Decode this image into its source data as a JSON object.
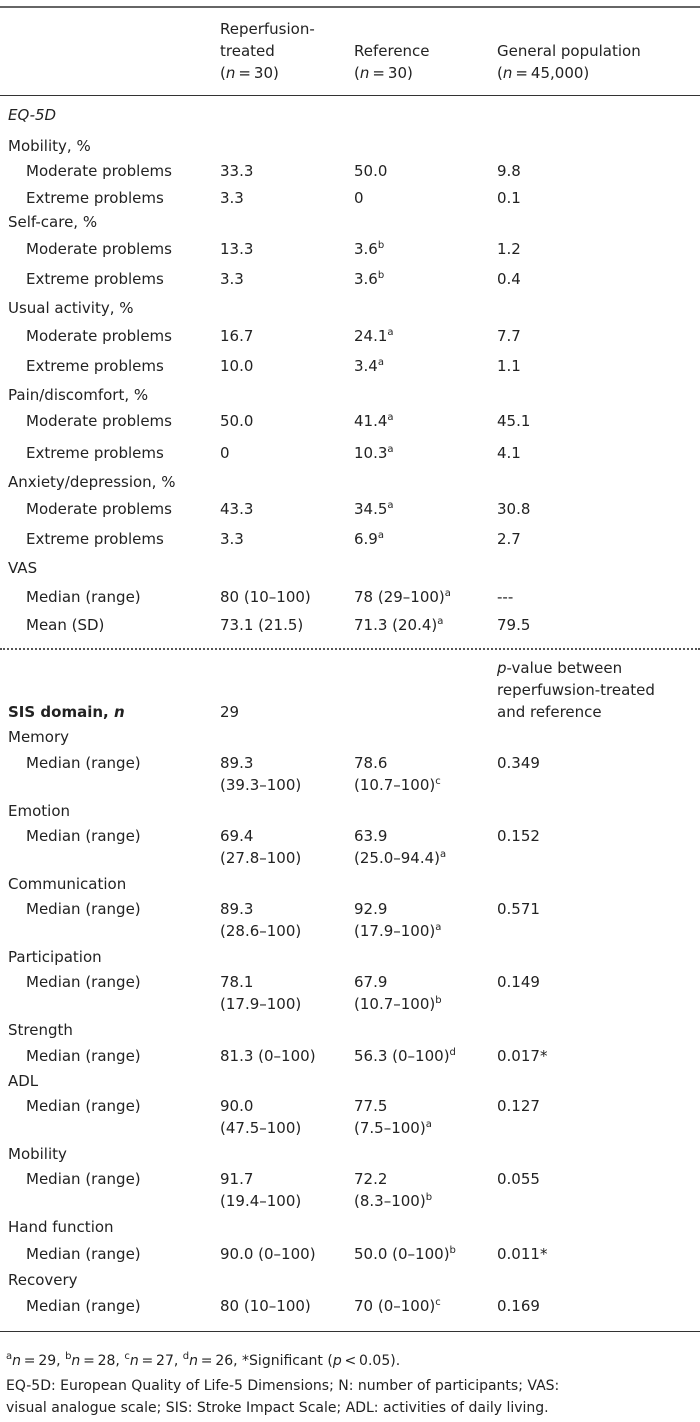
{
  "table": {
    "header": [
      [],
      [
        "Reperfusion-",
        "treated",
        [
          "(",
          {
            "i": "n"
          },
          " = 30)"
        ]
      ],
      [
        "Reference",
        [
          "(",
          {
            "i": "n"
          },
          " = 30)"
        ]
      ],
      [
        "General population",
        [
          "(",
          {
            "i": "n"
          },
          " = 45,000)"
        ]
      ]
    ],
    "rows": [
      {
        "label": [
          {
            "i": "EQ-5D"
          }
        ],
        "cells": []
      },
      {
        "label": "Mobility, %",
        "cells": []
      },
      {
        "label": "Moderate problems",
        "sub": true,
        "cells": [
          "33.3",
          "50.0",
          "9.8"
        ]
      },
      {
        "label": "Extreme problems",
        "sub": true,
        "cells": [
          "3.3",
          "0",
          "0.1"
        ]
      },
      {
        "label": "Self-care, %",
        "cells": []
      },
      {
        "label": "Moderate problems",
        "sub": true,
        "cells": [
          "13.3",
          [
            [
              "3.6",
              {
                "sup": "b"
              }
            ]
          ],
          "1.2"
        ]
      },
      {
        "label": "Extreme problems",
        "sub": true,
        "cells": [
          "3.3",
          [
            [
              "3.6",
              {
                "sup": "b"
              }
            ]
          ],
          "0.4"
        ]
      },
      {
        "label": "Usual activity, %",
        "cells": []
      },
      {
        "label": "Moderate problems",
        "sub": true,
        "cells": [
          "16.7",
          [
            [
              "24.1",
              {
                "sup": "a"
              }
            ]
          ],
          "7.7"
        ]
      },
      {
        "label": "Extreme problems",
        "sub": true,
        "cells": [
          "10.0",
          [
            [
              "3.4",
              {
                "sup": "a"
              }
            ]
          ],
          "1.1"
        ]
      },
      {
        "label": "Pain/discomfort, %",
        "cells": []
      },
      {
        "label": "Moderate problems",
        "sub": true,
        "cells": [
          "50.0",
          [
            [
              "41.4",
              {
                "sup": "a"
              }
            ]
          ],
          "45.1"
        ]
      },
      {
        "label": "Extreme problems",
        "sub": true,
        "cells": [
          "0",
          [
            [
              "10.3",
              {
                "sup": "a"
              }
            ]
          ],
          "4.1"
        ]
      },
      {
        "label": "Anxiety/depression, %",
        "cells": []
      },
      {
        "label": "Moderate problems",
        "sub": true,
        "cells": [
          "43.3",
          [
            [
              "34.5",
              {
                "sup": "a"
              }
            ]
          ],
          "30.8"
        ]
      },
      {
        "label": "Extreme problems",
        "sub": true,
        "cells": [
          "3.3",
          [
            [
              "6.9",
              {
                "sup": "a"
              }
            ]
          ],
          "2.7"
        ]
      },
      {
        "label": "VAS",
        "cells": []
      },
      {
        "label": "Median (range)",
        "sub": true,
        "cells": [
          "80 (10–100)",
          [
            [
              "78 (29–100)",
              {
                "sup": "a"
              }
            ]
          ],
          "---"
        ]
      },
      {
        "label": "Mean (SD)",
        "sub": true,
        "cells": [
          "73.1 (21.5)",
          [
            [
              "71.3 (20.4)",
              {
                "sup": "a"
              }
            ]
          ],
          "79.5"
        ]
      },
      {
        "label": [
          {
            "b": "SIS domain, "
          },
          {
            "bi": "n"
          }
        ],
        "cells": [
          "29",
          "",
          [
            [
              {
                "i": "p"
              },
              "-value between"
            ],
            "reperfuwsion-treated",
            "and reference"
          ]
        ]
      },
      {
        "label": "Memory",
        "cells": []
      },
      {
        "label": "Median (range)",
        "sub": true,
        "cells": [
          [
            "89.3",
            "(39.3–100)"
          ],
          [
            "78.6",
            [
              "(10.7–100)",
              {
                "sup": "c"
              }
            ]
          ],
          "0.349"
        ]
      },
      {
        "label": "Emotion",
        "cells": []
      },
      {
        "label": "Median (range)",
        "sub": true,
        "cells": [
          [
            "69.4",
            "(27.8–100)"
          ],
          [
            "63.9",
            [
              "(25.0–94.4)",
              {
                "sup": "a"
              }
            ]
          ],
          "0.152"
        ]
      },
      {
        "label": "Communication",
        "cells": []
      },
      {
        "label": "Median (range)",
        "sub": true,
        "cells": [
          [
            "89.3",
            "(28.6–100)"
          ],
          [
            "92.9",
            [
              "(17.9–100)",
              {
                "sup": "a"
              }
            ]
          ],
          "0.571"
        ]
      },
      {
        "label": "Participation",
        "cells": []
      },
      {
        "label": "Median (range)",
        "sub": true,
        "cells": [
          [
            "78.1",
            "(17.9–100)"
          ],
          [
            "67.9",
            [
              "(10.7–100)",
              {
                "sup": "b"
              }
            ]
          ],
          "0.149"
        ]
      },
      {
        "label": "Strength",
        "cells": []
      },
      {
        "label": "Median (range)",
        "sub": true,
        "cells": [
          "81.3 (0–100)",
          [
            [
              "56.3 (0–100)",
              {
                "sup": "d"
              }
            ]
          ],
          "0.017*"
        ]
      },
      {
        "label": "ADL",
        "cells": []
      },
      {
        "label": "Median (range)",
        "sub": true,
        "cells": [
          [
            "90.0",
            "(47.5–100)"
          ],
          [
            "77.5",
            [
              "(7.5–100)",
              {
                "sup": "a"
              }
            ]
          ],
          "0.127"
        ]
      },
      {
        "label": "Mobility",
        "cells": []
      },
      {
        "label": "Median (range)",
        "sub": true,
        "cells": [
          [
            "91.7",
            "(19.4–100)"
          ],
          [
            "72.2",
            [
              "(8.3–100)",
              {
                "sup": "b"
              }
            ]
          ],
          "0.055"
        ]
      },
      {
        "label": "Hand function",
        "cells": []
      },
      {
        "label": "Median (range)",
        "sub": true,
        "cells": [
          "90.0 (0–100)",
          [
            [
              "50.0 (0–100)",
              {
                "sup": "b"
              }
            ]
          ],
          "0.011*"
        ]
      },
      {
        "label": "Recovery",
        "cells": []
      },
      {
        "label": "Median (range)",
        "sub": true,
        "cells": [
          "80 (10–100)",
          [
            [
              "70 (0–100)",
              {
                "sup": "c"
              }
            ]
          ],
          "0.169"
        ]
      }
    ],
    "footnotes": [
      [
        [
          {
            "sup": "a"
          },
          {
            "i": "n"
          },
          " = 29, ",
          {
            "sup": "b"
          },
          {
            "i": "n"
          },
          " = 28, ",
          {
            "sup": "c"
          },
          {
            "i": "n"
          },
          " = 27, ",
          {
            "sup": "d"
          },
          {
            "i": "n"
          },
          " = 26, *Significant (",
          {
            "i": "p"
          },
          " < 0.05)."
        ]
      ],
      [
        "EQ-5D: European Quality of Life-5 Dimensions; N: number of participants; VAS:",
        "visual analogue scale; SIS: Stroke Impact Scale; ADL: activities of daily living."
      ]
    ]
  }
}
